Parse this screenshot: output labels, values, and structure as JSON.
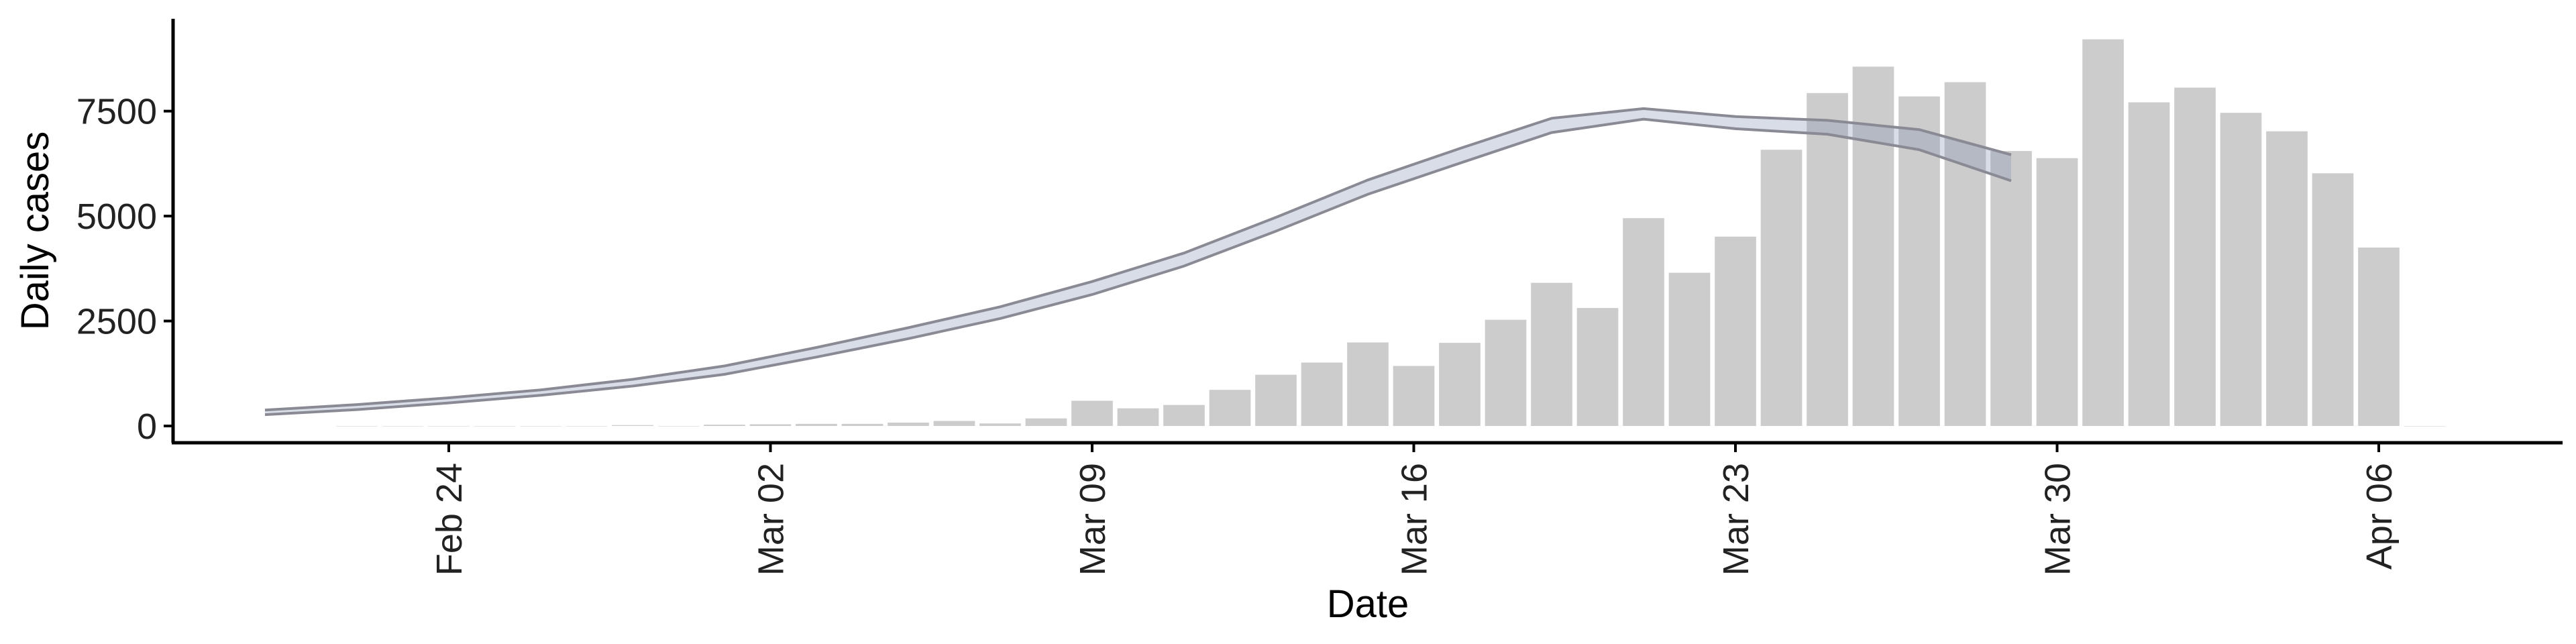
{
  "chart_data": {
    "type": "bar",
    "xlabel": "Date",
    "ylabel": "Daily cases",
    "ylim": [
      -400,
      9700
    ],
    "grid": false,
    "yticks": [
      0,
      2500,
      5000,
      7500
    ],
    "ytick_labels": [
      "0",
      "2500",
      "5000",
      "7500"
    ],
    "xticks": [
      {
        "date": "2020-02-24",
        "label": "Feb 24"
      },
      {
        "date": "2020-03-02",
        "label": "Mar 02"
      },
      {
        "date": "2020-03-09",
        "label": "Mar 09"
      },
      {
        "date": "2020-03-16",
        "label": "Mar 16"
      },
      {
        "date": "2020-03-23",
        "label": "Mar 23"
      },
      {
        "date": "2020-03-30",
        "label": "Mar 30"
      },
      {
        "date": "2020-04-06",
        "label": "Apr 06"
      }
    ],
    "xlim": [
      "2020-02-18",
      "2020-04-10"
    ],
    "bars": {
      "color": "#cccccc",
      "dates": [
        "2020-02-22",
        "2020-02-23",
        "2020-02-24",
        "2020-02-25",
        "2020-02-26",
        "2020-02-27",
        "2020-02-28",
        "2020-02-29",
        "2020-03-01",
        "2020-03-02",
        "2020-03-03",
        "2020-03-04",
        "2020-03-05",
        "2020-03-06",
        "2020-03-07",
        "2020-03-08",
        "2020-03-09",
        "2020-03-10",
        "2020-03-11",
        "2020-03-12",
        "2020-03-13",
        "2020-03-14",
        "2020-03-15",
        "2020-03-16",
        "2020-03-17",
        "2020-03-18",
        "2020-03-19",
        "2020-03-20",
        "2020-03-21",
        "2020-03-22",
        "2020-03-23",
        "2020-03-24",
        "2020-03-25",
        "2020-03-26",
        "2020-03-27",
        "2020-03-28",
        "2020-03-29",
        "2020-03-30",
        "2020-03-31",
        "2020-04-01",
        "2020-04-02",
        "2020-04-03",
        "2020-04-04",
        "2020-04-05",
        "2020-04-06",
        "2020-04-07"
      ],
      "values": [
        0,
        0,
        0,
        0,
        0,
        0,
        20,
        0,
        30,
        40,
        50,
        50,
        80,
        120,
        60,
        180,
        600,
        420,
        500,
        860,
        1220,
        1510,
        1990,
        1430,
        1980,
        2530,
        3410,
        2810,
        4950,
        3650,
        4510,
        6580,
        7930,
        8560,
        7850,
        8190,
        6550,
        6380,
        9210,
        7710,
        8060,
        7460,
        7020,
        6020,
        4250,
        0
      ]
    },
    "model": {
      "color": "#7f8fb0",
      "dates": [
        "2020-02-20",
        "2020-02-22",
        "2020-02-24",
        "2020-02-26",
        "2020-02-28",
        "2020-03-01",
        "2020-03-03",
        "2020-03-05",
        "2020-03-07",
        "2020-03-09",
        "2020-03-11",
        "2020-03-13",
        "2020-03-15",
        "2020-03-17",
        "2020-03-19",
        "2020-03-21",
        "2020-03-23",
        "2020-03-25",
        "2020-03-27",
        "2020-03-29"
      ],
      "lower": [
        270,
        390,
        550,
        730,
        950,
        1230,
        1640,
        2080,
        2560,
        3130,
        3810,
        4640,
        5520,
        6260,
        6990,
        7310,
        7080,
        6950,
        6580,
        5840
      ],
      "upper": [
        380,
        510,
        670,
        860,
        1110,
        1430,
        1870,
        2340,
        2840,
        3440,
        4120,
        4970,
        5860,
        6610,
        7330,
        7560,
        7370,
        7280,
        7060,
        6460
      ]
    }
  }
}
